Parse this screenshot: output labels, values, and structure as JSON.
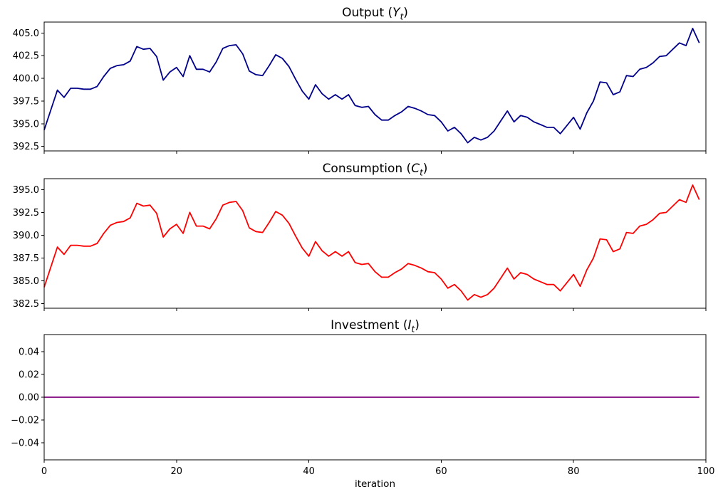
{
  "figure": {
    "background": "#ffffff",
    "frame_color": "#000000",
    "xlabel": "iteration",
    "xticks": [
      0,
      20,
      40,
      60,
      80,
      100
    ]
  },
  "chart_data": [
    {
      "type": "line",
      "title": {
        "prefix": "Output (",
        "variable": "Y",
        "subscript": "t",
        "suffix": ")"
      },
      "xlim": [
        0,
        100
      ],
      "ylim": [
        392.0,
        406.2
      ],
      "yticks": [
        "392.5",
        "395.0",
        "397.5",
        "400.0",
        "402.5",
        "405.0"
      ],
      "grid": false,
      "x_start": 0,
      "x_step": 1,
      "series": [
        {
          "name": "Output",
          "color": "#00008B",
          "values": [
            394.3,
            396.5,
            398.7,
            397.9,
            398.9,
            398.9,
            398.8,
            398.8,
            399.1,
            400.2,
            401.1,
            401.4,
            401.5,
            401.9,
            403.5,
            403.2,
            403.3,
            402.4,
            399.8,
            400.7,
            401.2,
            400.2,
            402.5,
            401.0,
            401.0,
            400.7,
            401.8,
            403.3,
            403.6,
            403.7,
            402.7,
            400.8,
            400.4,
            400.3,
            401.4,
            402.6,
            402.2,
            401.3,
            399.9,
            398.6,
            397.7,
            399.3,
            398.3,
            397.7,
            398.2,
            397.7,
            398.2,
            397.0,
            396.8,
            396.9,
            396.0,
            395.4,
            395.4,
            395.9,
            396.3,
            396.9,
            396.7,
            396.4,
            396.0,
            395.9,
            395.2,
            394.2,
            394.6,
            393.9,
            392.9,
            393.5,
            393.2,
            393.5,
            394.2,
            395.3,
            396.4,
            395.2,
            395.9,
            395.7,
            395.2,
            394.9,
            394.6,
            394.6,
            393.9,
            394.8,
            395.7,
            394.4,
            396.2,
            397.5,
            399.6,
            399.5,
            398.2,
            398.5,
            400.3,
            400.2,
            401.0,
            401.2,
            401.7,
            402.4,
            402.5,
            403.2,
            403.9,
            403.6,
            405.5,
            403.9
          ]
        }
      ]
    },
    {
      "type": "line",
      "title": {
        "prefix": "Consumption (",
        "variable": "C",
        "subscript": "t",
        "suffix": ")"
      },
      "xlim": [
        0,
        100
      ],
      "ylim": [
        382.0,
        396.2
      ],
      "yticks": [
        "382.5",
        "385.0",
        "387.5",
        "390.0",
        "392.5",
        "395.0"
      ],
      "grid": false,
      "x_start": 0,
      "x_step": 1,
      "series": [
        {
          "name": "Consumption",
          "color": "#FF0000",
          "values": [
            384.3,
            386.5,
            388.7,
            387.9,
            388.9,
            388.9,
            388.8,
            388.8,
            389.1,
            390.2,
            391.1,
            391.4,
            391.5,
            391.9,
            393.5,
            393.2,
            393.3,
            392.4,
            389.8,
            390.7,
            391.2,
            390.2,
            392.5,
            391.0,
            391.0,
            390.7,
            391.8,
            393.3,
            393.6,
            393.7,
            392.7,
            390.8,
            390.4,
            390.3,
            391.4,
            392.6,
            392.2,
            391.3,
            389.9,
            388.6,
            387.7,
            389.3,
            388.3,
            387.7,
            388.2,
            387.7,
            388.2,
            387.0,
            386.8,
            386.9,
            386.0,
            385.4,
            385.4,
            385.9,
            386.3,
            386.9,
            386.7,
            386.4,
            386.0,
            385.9,
            385.2,
            384.2,
            384.6,
            383.9,
            382.9,
            383.5,
            383.2,
            383.5,
            384.2,
            385.3,
            386.4,
            385.2,
            385.9,
            385.7,
            385.2,
            384.9,
            384.6,
            384.6,
            383.9,
            384.8,
            385.7,
            384.4,
            386.2,
            387.5,
            389.6,
            389.5,
            388.2,
            388.5,
            390.3,
            390.2,
            391.0,
            391.2,
            391.7,
            392.4,
            392.5,
            393.2,
            393.9,
            393.6,
            395.5,
            393.9
          ]
        }
      ]
    },
    {
      "type": "line",
      "title": {
        "prefix": "Investment (",
        "variable": "I",
        "subscript": "t",
        "suffix": ")"
      },
      "xlim": [
        0,
        100
      ],
      "ylim": [
        -0.055,
        0.055
      ],
      "yticks": [
        "−0.04",
        "−0.02",
        "0.00",
        "0.02",
        "0.04"
      ],
      "grid": false,
      "x_start": 0,
      "x_step": 1,
      "series": [
        {
          "name": "Investment",
          "color": "#800080",
          "values": [
            0,
            0,
            0,
            0,
            0,
            0,
            0,
            0,
            0,
            0,
            0,
            0,
            0,
            0,
            0,
            0,
            0,
            0,
            0,
            0,
            0,
            0,
            0,
            0,
            0,
            0,
            0,
            0,
            0,
            0,
            0,
            0,
            0,
            0,
            0,
            0,
            0,
            0,
            0,
            0,
            0,
            0,
            0,
            0,
            0,
            0,
            0,
            0,
            0,
            0,
            0,
            0,
            0,
            0,
            0,
            0,
            0,
            0,
            0,
            0,
            0,
            0,
            0,
            0,
            0,
            0,
            0,
            0,
            0,
            0,
            0,
            0,
            0,
            0,
            0,
            0,
            0,
            0,
            0,
            0,
            0,
            0,
            0,
            0,
            0,
            0,
            0,
            0,
            0,
            0,
            0,
            0,
            0,
            0,
            0,
            0,
            0,
            0,
            0,
            0
          ]
        }
      ]
    }
  ]
}
